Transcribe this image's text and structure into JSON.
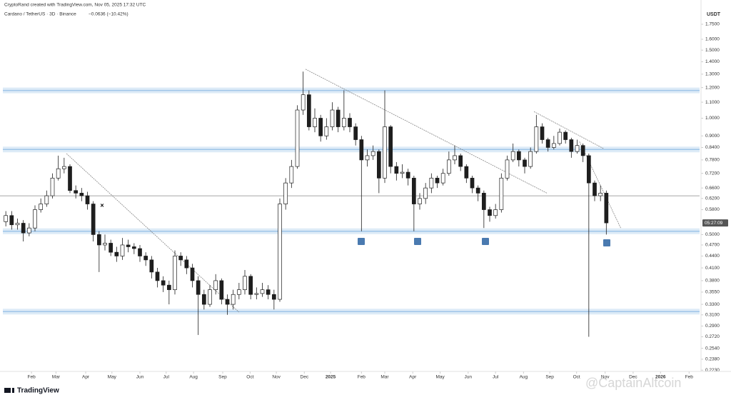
{
  "header": {
    "author_line": "CryptoRand created with TradingView.com, Nov 05, 2025 17:32 UTC",
    "symbol": "Cardano / TetherUS · 3D · Binance",
    "change": "−0.0636 (−10.42%)"
  },
  "footer": {
    "logo": "TradingView",
    "watermark": "@CaptainAltcoin"
  },
  "chart_data": {
    "type": "candlestick",
    "y_axis_label": "USDT",
    "log_scale": true,
    "up_color": "#ffffff",
    "down_color": "#1e1e1e",
    "zone_color": "#9fc5e8",
    "line_color": "#888888",
    "xlim": [
      0,
      120
    ],
    "ylim": [
      0.2213,
      1.905
    ],
    "xticks": [
      {
        "value": 5.4,
        "label": "Feb"
      },
      {
        "value": 9.6,
        "label": "Mar"
      },
      {
        "value": 14.7,
        "label": "Apr"
      },
      {
        "value": 19.2,
        "label": "May"
      },
      {
        "value": 24,
        "label": "Jun"
      },
      {
        "value": 28.5,
        "label": "Jul"
      },
      {
        "value": 33.2,
        "label": "Aug"
      },
      {
        "value": 38.2,
        "label": "Sep"
      },
      {
        "value": 42.9,
        "label": "Oct"
      },
      {
        "value": 47.4,
        "label": "Nov"
      },
      {
        "value": 52.2,
        "label": "Dec"
      },
      {
        "value": 56.7,
        "label": "2025"
      },
      {
        "value": 62,
        "label": "Feb"
      },
      {
        "value": 66,
        "label": "Mar"
      },
      {
        "value": 70.8,
        "label": "Apr"
      },
      {
        "value": 75.5,
        "label": "May"
      },
      {
        "value": 80.3,
        "label": "Jun"
      },
      {
        "value": 85,
        "label": "Jul"
      },
      {
        "value": 89.8,
        "label": "Aug"
      },
      {
        "value": 94.3,
        "label": "Sep"
      },
      {
        "value": 98.9,
        "label": "Oct"
      },
      {
        "value": 103.8,
        "label": "Nov"
      },
      {
        "value": 108.6,
        "label": "Dec"
      },
      {
        "value": 113.3,
        "label": "2026"
      },
      {
        "value": 118.2,
        "label": "Feb"
      }
    ],
    "yticks": [
      {
        "value": 1.75,
        "label": "1.7500"
      },
      {
        "value": 1.6,
        "label": "1.6000"
      },
      {
        "value": 1.5,
        "label": "1.5000"
      },
      {
        "value": 1.4,
        "label": "1.4000"
      },
      {
        "value": 1.3,
        "label": "1.3000"
      },
      {
        "value": 1.2,
        "label": "1.2000"
      },
      {
        "value": 1.1,
        "label": "1.1000"
      },
      {
        "value": 1.0,
        "label": "1.0000"
      },
      {
        "value": 0.9,
        "label": "0.9000"
      },
      {
        "value": 0.84,
        "label": "0.8400"
      },
      {
        "value": 0.78,
        "label": "0.7800"
      },
      {
        "value": 0.72,
        "label": "0.7200"
      },
      {
        "value": 0.66,
        "label": "0.6600"
      },
      {
        "value": 0.62,
        "label": "0.6200"
      },
      {
        "value": 0.58,
        "label": "0.5800"
      },
      {
        "value": 0.5,
        "label": "0.5000"
      },
      {
        "value": 0.47,
        "label": "0.4700"
      },
      {
        "value": 0.44,
        "label": "0.4400"
      },
      {
        "value": 0.41,
        "label": "0.4100"
      },
      {
        "value": 0.38,
        "label": "0.3800"
      },
      {
        "value": 0.355,
        "label": "0.3550"
      },
      {
        "value": 0.33,
        "label": "0.3300"
      },
      {
        "value": 0.31,
        "label": "0.3100"
      },
      {
        "value": 0.29,
        "label": "0.2900"
      },
      {
        "value": 0.272,
        "label": "0.2720"
      },
      {
        "value": 0.254,
        "label": "0.2540"
      },
      {
        "value": 0.238,
        "label": "0.2380"
      },
      {
        "value": 0.223,
        "label": "0.2230"
      }
    ],
    "x": [
      1,
      2,
      3,
      4,
      5,
      6,
      7,
      8,
      9,
      10,
      11,
      12,
      13,
      14,
      15,
      16,
      17,
      18,
      19,
      20,
      21,
      22,
      23,
      24,
      25,
      26,
      27,
      28,
      29,
      30,
      31,
      32,
      33,
      34,
      35,
      36,
      37,
      38,
      39,
      40,
      41,
      42,
      43,
      44,
      45,
      46,
      47,
      48,
      49,
      50,
      51,
      52,
      53,
      54,
      55,
      56,
      57,
      58,
      59,
      60,
      61,
      62,
      63,
      64,
      65,
      66,
      67,
      68,
      69,
      70,
      71,
      72,
      73,
      74,
      75,
      76,
      77,
      78,
      79,
      80,
      81,
      82,
      83,
      84,
      85,
      86,
      87,
      88,
      89,
      90,
      91,
      92,
      93,
      94,
      95,
      96,
      97,
      98,
      99,
      100,
      101,
      102,
      103,
      104
    ],
    "open": [
      0.54,
      0.56,
      0.53,
      0.535,
      0.505,
      0.52,
      0.58,
      0.6,
      0.63,
      0.7,
      0.74,
      0.75,
      0.65,
      0.64,
      0.63,
      0.6,
      0.5,
      0.47,
      0.475,
      0.45,
      0.44,
      0.47,
      0.465,
      0.46,
      0.44,
      0.43,
      0.4,
      0.38,
      0.37,
      0.36,
      0.44,
      0.43,
      0.41,
      0.38,
      0.35,
      0.33,
      0.36,
      0.38,
      0.34,
      0.33,
      0.35,
      0.36,
      0.39,
      0.35,
      0.352,
      0.36,
      0.35,
      0.34,
      0.6,
      0.68,
      0.75,
      1.05,
      1.15,
      0.95,
      1.0,
      0.9,
      0.95,
      1.05,
      0.95,
      1.0,
      0.95,
      0.88,
      0.78,
      0.8,
      0.82,
      0.7,
      0.95,
      0.75,
      0.72,
      0.725,
      0.7,
      0.6,
      0.62,
      0.66,
      0.7,
      0.68,
      0.72,
      0.78,
      0.8,
      0.75,
      0.7,
      0.66,
      0.64,
      0.58,
      0.56,
      0.58,
      0.7,
      0.78,
      0.82,
      0.78,
      0.75,
      0.82,
      0.95,
      0.88,
      0.84,
      0.86,
      0.92,
      0.88,
      0.82,
      0.85,
      0.8,
      0.68,
      0.63,
      0.64
    ],
    "high": [
      0.575,
      0.575,
      0.55,
      0.545,
      0.535,
      0.595,
      0.62,
      0.65,
      0.72,
      0.8,
      0.79,
      0.76,
      0.67,
      0.66,
      0.645,
      0.61,
      0.51,
      0.5,
      0.485,
      0.465,
      0.49,
      0.485,
      0.475,
      0.47,
      0.45,
      0.44,
      0.41,
      0.39,
      0.38,
      0.455,
      0.45,
      0.44,
      0.42,
      0.39,
      0.36,
      0.37,
      0.395,
      0.385,
      0.35,
      0.36,
      0.375,
      0.405,
      0.395,
      0.365,
      0.375,
      0.37,
      0.36,
      0.62,
      0.7,
      0.78,
      1.08,
      1.32,
      1.18,
      1.06,
      1.02,
      1.0,
      1.1,
      1.07,
      1.18,
      1.03,
      0.97,
      0.9,
      0.83,
      0.85,
      0.83,
      1.18,
      0.96,
      0.77,
      0.76,
      0.74,
      0.71,
      0.64,
      0.68,
      0.72,
      0.71,
      0.74,
      0.82,
      0.85,
      0.81,
      0.76,
      0.71,
      0.67,
      0.65,
      0.59,
      0.6,
      0.72,
      0.8,
      0.86,
      0.83,
      0.79,
      0.84,
      1.02,
      0.97,
      0.89,
      0.9,
      0.94,
      0.93,
      0.89,
      0.88,
      0.86,
      0.81,
      0.69,
      0.67,
      0.65
    ],
    "low": [
      0.525,
      0.515,
      0.515,
      0.48,
      0.495,
      0.51,
      0.57,
      0.59,
      0.62,
      0.69,
      0.72,
      0.64,
      0.62,
      0.61,
      0.58,
      0.48,
      0.4,
      0.455,
      0.44,
      0.425,
      0.43,
      0.45,
      0.445,
      0.425,
      0.415,
      0.385,
      0.365,
      0.355,
      0.33,
      0.35,
      0.415,
      0.395,
      0.365,
      0.275,
      0.32,
      0.325,
      0.35,
      0.33,
      0.31,
      0.32,
      0.34,
      0.35,
      0.34,
      0.34,
      0.345,
      0.34,
      0.32,
      0.335,
      0.58,
      0.66,
      0.74,
      1.02,
      0.93,
      0.92,
      0.87,
      0.88,
      0.93,
      0.92,
      0.93,
      0.92,
      0.85,
      0.51,
      0.75,
      0.78,
      0.64,
      0.68,
      0.72,
      0.69,
      0.7,
      0.67,
      0.51,
      0.58,
      0.6,
      0.64,
      0.66,
      0.67,
      0.71,
      0.76,
      0.73,
      0.68,
      0.64,
      0.61,
      0.52,
      0.54,
      0.55,
      0.57,
      0.69,
      0.77,
      0.75,
      0.72,
      0.74,
      0.81,
      0.86,
      0.82,
      0.83,
      0.85,
      0.86,
      0.79,
      0.81,
      0.77,
      0.272,
      0.61,
      0.61,
      0.5
    ],
    "close": [
      0.56,
      0.53,
      0.535,
      0.505,
      0.52,
      0.58,
      0.6,
      0.63,
      0.7,
      0.74,
      0.75,
      0.65,
      0.64,
      0.63,
      0.6,
      0.5,
      0.47,
      0.475,
      0.45,
      0.44,
      0.47,
      0.465,
      0.46,
      0.44,
      0.43,
      0.4,
      0.38,
      0.37,
      0.36,
      0.44,
      0.43,
      0.41,
      0.38,
      0.35,
      0.33,
      0.36,
      0.38,
      0.34,
      0.33,
      0.35,
      0.36,
      0.39,
      0.35,
      0.352,
      0.36,
      0.35,
      0.34,
      0.6,
      0.68,
      0.75,
      1.05,
      1.15,
      0.95,
      1.0,
      0.9,
      0.95,
      1.05,
      0.95,
      1.0,
      0.95,
      0.88,
      0.78,
      0.8,
      0.82,
      0.7,
      0.95,
      0.75,
      0.72,
      0.725,
      0.7,
      0.6,
      0.62,
      0.66,
      0.7,
      0.68,
      0.72,
      0.78,
      0.8,
      0.75,
      0.7,
      0.66,
      0.64,
      0.58,
      0.56,
      0.58,
      0.7,
      0.78,
      0.82,
      0.78,
      0.75,
      0.82,
      0.95,
      0.88,
      0.84,
      0.86,
      0.92,
      0.88,
      0.82,
      0.85,
      0.8,
      0.68,
      0.63,
      0.64,
      0.536
    ],
    "countdown": "05:27:09",
    "zones": [
      1.18,
      0.83,
      0.51,
      0.316
    ],
    "horizontal_line": 0.63,
    "trendlines": [
      {
        "x": [
          52.4,
          93.9
        ],
        "y": [
          1.339,
          0.639
        ]
      },
      {
        "x": [
          11.4,
          41
        ],
        "y": [
          0.81,
          0.315
        ]
      },
      {
        "x": [
          91.6,
          103.5
        ],
        "y": [
          1.04,
          0.835
        ]
      },
      {
        "x": [
          99.4,
          106.5
        ],
        "y": [
          0.87,
          0.519
        ]
      }
    ]
  }
}
